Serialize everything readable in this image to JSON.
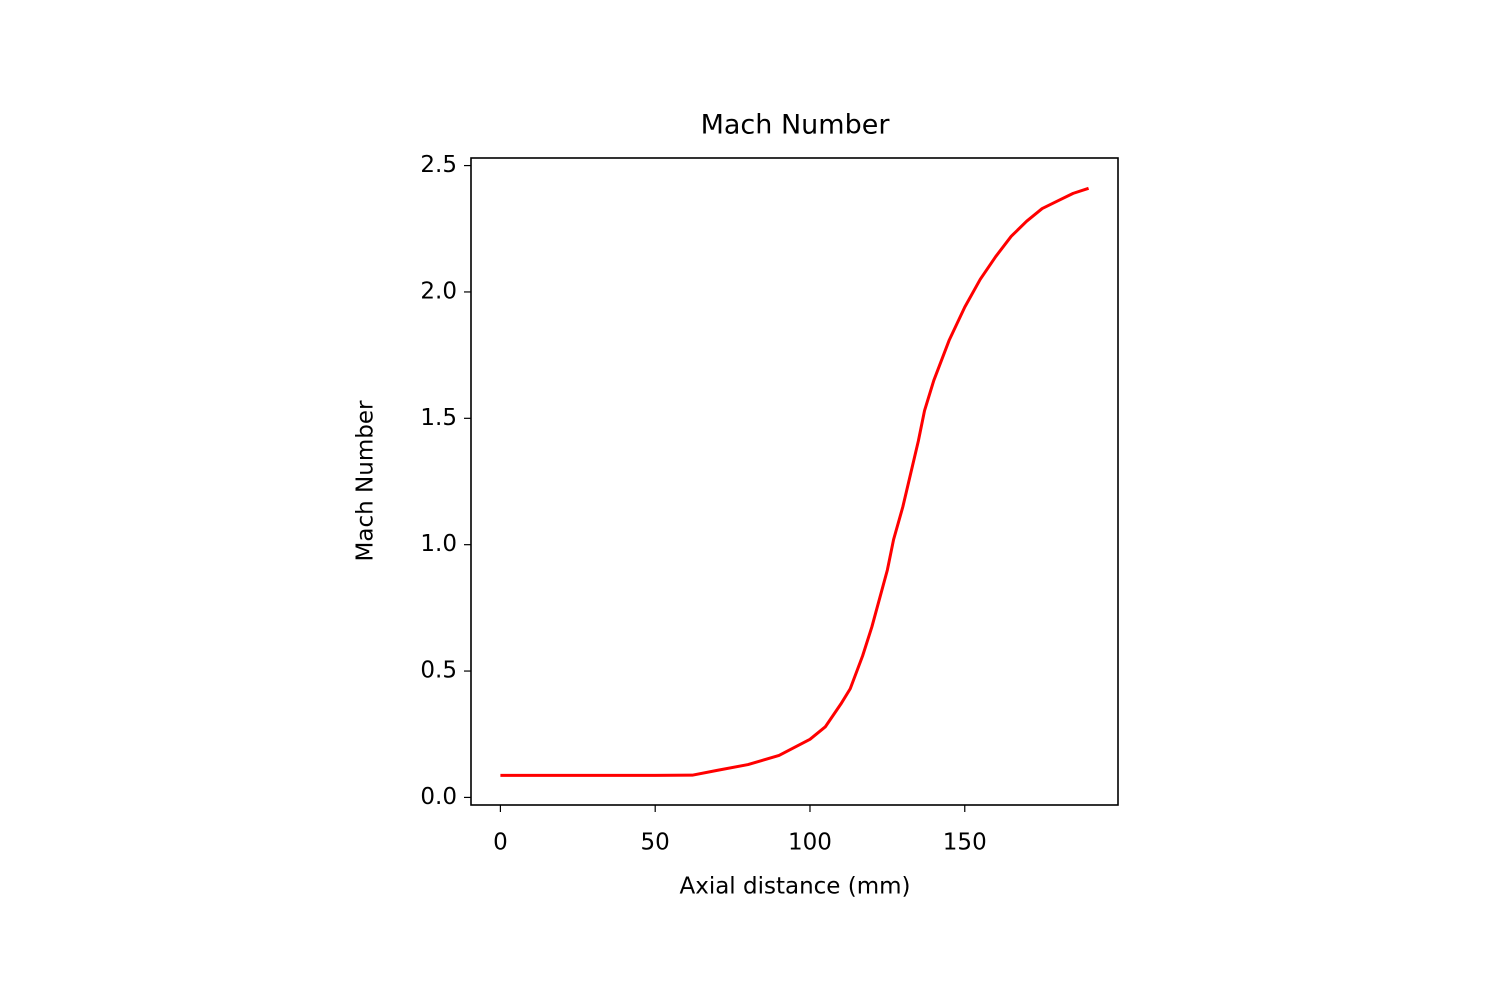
{
  "chart_data": {
    "type": "line",
    "title": "Mach Number",
    "x_label": "Axial distance (mm)",
    "y_label": "Mach Number",
    "x": [
      0,
      10,
      20,
      30,
      40,
      50,
      62,
      70,
      80,
      90,
      100,
      105,
      110,
      113,
      117,
      120,
      125,
      127,
      130,
      135,
      137,
      140,
      145,
      150,
      155,
      160,
      165,
      170,
      175,
      180,
      185,
      190
    ],
    "series": [
      {
        "name": "Mach Number",
        "color": "#ff0000",
        "values": [
          0.087,
          0.087,
          0.087,
          0.087,
          0.087,
          0.087,
          0.088,
          0.107,
          0.13,
          0.166,
          0.23,
          0.28,
          0.37,
          0.43,
          0.56,
          0.675,
          0.9,
          1.02,
          1.15,
          1.41,
          1.53,
          1.65,
          1.81,
          1.94,
          2.05,
          2.14,
          2.22,
          2.28,
          2.33,
          2.36,
          2.39,
          2.41
        ]
      }
    ],
    "xlim": [
      -9.5,
      199.5
    ],
    "xticks": [
      0,
      50,
      100,
      150
    ],
    "ylim": [
      -0.03,
      2.53
    ],
    "yticks": [
      {
        "value": 0,
        "label": "0.0"
      },
      0.5,
      {
        "value": 1,
        "label": "1.0"
      },
      1.5,
      {
        "value": 2,
        "label": "2.0"
      },
      2.5
    ],
    "grid": false
  }
}
